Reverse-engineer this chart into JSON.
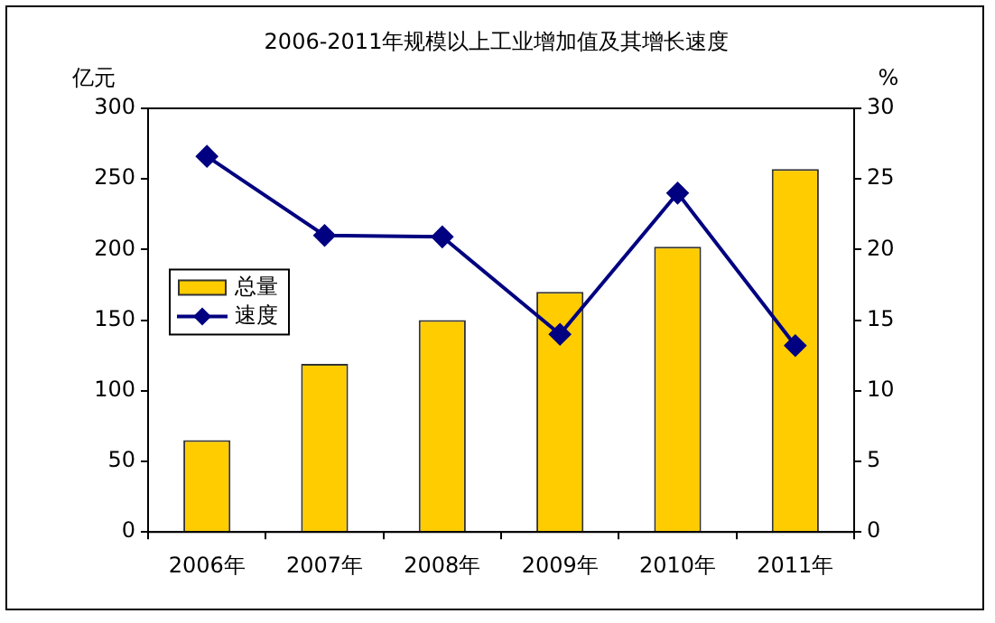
{
  "chart_data": {
    "type": "bar",
    "title": "2006-2011年规模以上工业增加值及其增长速度",
    "ylabel": "亿元",
    "y2label": "%",
    "categories": [
      "2006年",
      "2007年",
      "2008年",
      "2009年",
      "2010年",
      "2011年"
    ],
    "series": [
      {
        "name": "总量",
        "color": "#ffcc00",
        "values": [
          65,
          119,
          150,
          170,
          202,
          257
        ]
      },
      {
        "name": "速度",
        "type": "line",
        "axis": "y2",
        "color": "#000080",
        "marker": "diamond",
        "values": [
          26.6,
          21.0,
          20.9,
          14.0,
          24.0,
          13.2
        ]
      }
    ],
    "ylim": [
      0,
      300
    ],
    "yticks": [
      0,
      50,
      100,
      150,
      200,
      250,
      300
    ],
    "y2lim": [
      0,
      30
    ],
    "y2ticks": [
      0,
      5,
      10,
      15,
      20,
      25,
      30
    ],
    "grid": false,
    "legend": "center left"
  }
}
